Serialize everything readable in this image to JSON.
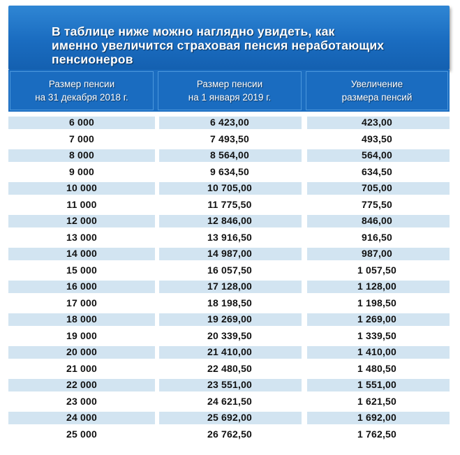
{
  "banner": {
    "text": "В таблице ниже можно наглядно увидеть, как\nименно  увеличится страховая пенсия неработающих\nпенсионеров"
  },
  "table": {
    "headers": [
      "Размер пенсии\nна 31 декабря 2018 г.",
      "Размер пенсии\nна 1 января 2019 г.",
      "Увеличение\nразмера пенсий"
    ],
    "rows": [
      [
        "6 000",
        "6 423,00",
        "423,00"
      ],
      [
        "7 000",
        "7 493,50",
        "493,50"
      ],
      [
        "8 000",
        "8 564,00",
        "564,00"
      ],
      [
        "9 000",
        "9 634,50",
        "634,50"
      ],
      [
        "10 000",
        "10 705,00",
        "705,00"
      ],
      [
        "11 000",
        "11 775,50",
        "775,50"
      ],
      [
        "12 000",
        "12 846,00",
        "846,00"
      ],
      [
        "13 000",
        "13 916,50",
        "916,50"
      ],
      [
        "14 000",
        "14 987,00",
        "987,00"
      ],
      [
        "15 000",
        "16 057,50",
        "1 057,50"
      ],
      [
        "16 000",
        "17 128,00",
        "1 128,00"
      ],
      [
        "17 000",
        "18 198,50",
        "1 198,50"
      ],
      [
        "18 000",
        "19 269,00",
        "1 269,00"
      ],
      [
        "19 000",
        "20 339,50",
        "1 339,50"
      ],
      [
        "20 000",
        "21 410,00",
        "1 410,00"
      ],
      [
        "21 000",
        "22 480,50",
        "1 480,50"
      ],
      [
        "22 000",
        "23 551,00",
        "1 551,00"
      ],
      [
        "23 000",
        "24 621,50",
        "1 621,50"
      ],
      [
        "24 000",
        "25 692,00",
        "1 692,00"
      ],
      [
        "25 000",
        "26 762,50",
        "1 762,50"
      ]
    ]
  }
}
